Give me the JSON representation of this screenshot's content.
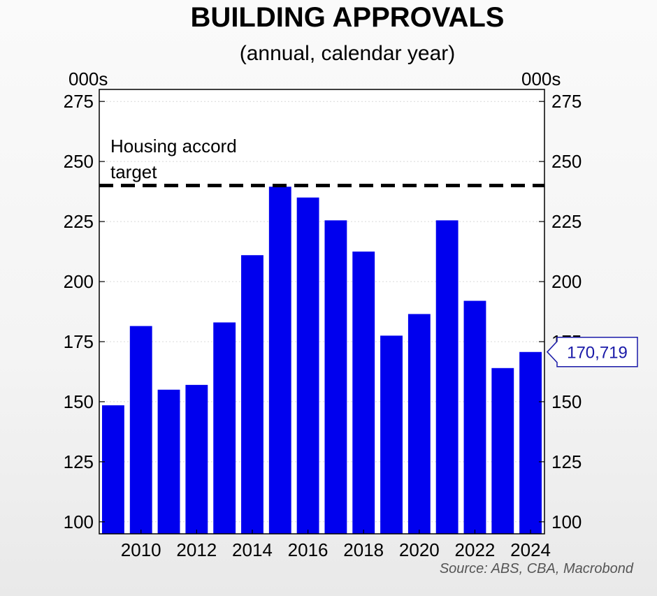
{
  "chart_data": {
    "type": "bar",
    "title": "BUILDING APPROVALS",
    "subtitle": "(annual, calendar year)",
    "ylabel_left": "000s",
    "ylabel_right": "000s",
    "ylim": [
      95,
      280
    ],
    "yticks": [
      100,
      125,
      150,
      175,
      200,
      225,
      250,
      275
    ],
    "categories": [
      "2009",
      "2010",
      "2011",
      "2012",
      "2013",
      "2014",
      "2015",
      "2016",
      "2017",
      "2018",
      "2019",
      "2020",
      "2021",
      "2022",
      "2023",
      "2024"
    ],
    "xtick_labels": [
      "2010",
      "2012",
      "2014",
      "2016",
      "2018",
      "2020",
      "2022",
      "2024"
    ],
    "values": [
      148.5,
      181.5,
      155,
      157,
      183,
      211,
      239.5,
      235,
      225.5,
      212.5,
      177.5,
      186.5,
      225.5,
      192,
      164,
      170.7
    ],
    "bar_color": "#0000ee",
    "target": {
      "value": 240,
      "label_line1": "Housing accord",
      "label_line2": "target"
    },
    "callout": {
      "value": 170.719,
      "label": "170,719",
      "color": "#1a1aa8"
    },
    "grid": true,
    "source": "Source: ABS, CBA, Macrobond"
  }
}
